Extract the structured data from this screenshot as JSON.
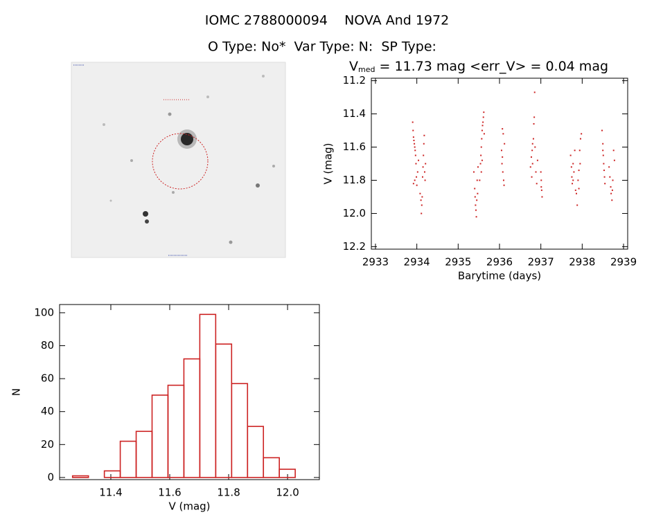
{
  "header": {
    "title": "IOMC 2788000094    NOVA And 1972",
    "subtitle": "O Type: No*  Var Type: N:  SP Type:"
  },
  "chart_data": [
    {
      "type": "scatter",
      "title_main": "V",
      "title_sub": "med",
      "title_rest": " = 11.73 mag <err_V> = 0.04 mag",
      "x_label": "Barytime (days)",
      "y_label": "V (mag)",
      "color": "#cc2222",
      "xlim": [
        2932.9,
        2939.1
      ],
      "ylim": [
        12.215,
        11.185
      ],
      "xticks": [
        2933,
        2934,
        2935,
        2936,
        2937,
        2938,
        2939
      ],
      "yticks": [
        11.2,
        11.4,
        11.6,
        11.8,
        {
          "value": 12,
          "label": "12.0"
        },
        12.2
      ],
      "x": [
        2933.9,
        2933.91,
        2933.92,
        2933.93,
        2933.94,
        2933.95,
        2933.96,
        2933.97,
        2933.98,
        2933.99,
        2934.0,
        2933.92,
        2933.95,
        2934.02,
        2934.04,
        2934.08,
        2934.1,
        2934.11,
        2934.12,
        2934.13,
        2934.14,
        2934.15,
        2934.16,
        2934.17,
        2934.18,
        2934.19,
        2934.2,
        2934.21,
        2935.38,
        2935.4,
        2935.41,
        2935.42,
        2935.43,
        2935.44,
        2935.45,
        2935.46,
        2935.47,
        2935.48,
        2935.52,
        2935.54,
        2935.55,
        2935.56,
        2935.57,
        2935.58,
        2935.59,
        2935.6,
        2935.61,
        2935.62,
        2935.56,
        2935.58,
        2935.63,
        2936.05,
        2936.06,
        2936.07,
        2936.08,
        2936.09,
        2936.1,
        2936.11,
        2936.12,
        2936.07,
        2936.75,
        2936.77,
        2936.78,
        2936.79,
        2936.8,
        2936.82,
        2936.83,
        2936.84,
        2936.85,
        2936.86,
        2936.88,
        2936.9,
        2936.92,
        2936.8,
        2937.0,
        2937.01,
        2937.02,
        2937.03,
        2937.01,
        2937.72,
        2937.74,
        2937.75,
        2937.76,
        2937.78,
        2937.8,
        2937.82,
        2937.84,
        2937.86,
        2937.78,
        2937.88,
        2937.9,
        2937.92,
        2937.94,
        2937.96,
        2937.98,
        2937.92,
        2937.95,
        2938.48,
        2938.5,
        2938.51,
        2938.52,
        2938.53,
        2938.54,
        2938.55,
        2938.5,
        2938.65,
        2938.67,
        2938.69,
        2938.7,
        2938.72,
        2938.74,
        2938.76,
        2938.78,
        2938.73
      ],
      "values": [
        11.45,
        11.5,
        11.54,
        11.56,
        11.58,
        11.6,
        11.62,
        11.65,
        11.7,
        11.78,
        11.83,
        11.82,
        11.8,
        11.75,
        11.68,
        11.88,
        11.92,
        12.0,
        11.95,
        11.9,
        11.78,
        11.72,
        11.65,
        11.58,
        11.53,
        11.75,
        11.8,
        11.7,
        11.75,
        11.85,
        11.9,
        11.95,
        11.98,
        12.02,
        11.92,
        11.8,
        11.88,
        11.72,
        11.8,
        11.7,
        11.65,
        11.6,
        11.55,
        11.5,
        11.47,
        11.45,
        11.42,
        11.39,
        11.75,
        11.68,
        11.52,
        11.62,
        11.7,
        11.66,
        11.75,
        11.52,
        11.8,
        11.83,
        11.58,
        11.49,
        11.72,
        11.66,
        11.78,
        11.62,
        11.7,
        11.55,
        11.46,
        11.42,
        11.27,
        11.6,
        11.75,
        11.82,
        11.68,
        11.58,
        11.75,
        11.8,
        11.86,
        11.9,
        11.84,
        11.65,
        11.72,
        11.78,
        11.82,
        11.7,
        11.75,
        11.62,
        11.86,
        11.88,
        11.8,
        11.95,
        11.8,
        11.74,
        11.62,
        11.55,
        11.52,
        11.85,
        11.7,
        11.5,
        11.58,
        11.65,
        11.7,
        11.74,
        11.78,
        11.82,
        11.62,
        11.72,
        11.78,
        11.84,
        11.88,
        11.92,
        11.8,
        11.62,
        11.68,
        11.86
      ]
    },
    {
      "type": "histogram",
      "x_label": "V (mag)",
      "y_label": "N",
      "color": "#cc2222",
      "xlim": [
        11.226,
        12.108
      ],
      "ylim": [
        -1.3,
        105
      ],
      "xticks": [
        11.4,
        11.6,
        11.8,
        {
          "value": 12,
          "label": "12.0"
        }
      ],
      "yticks": [
        0,
        20,
        40,
        60,
        80,
        100
      ],
      "bins": [
        11.27,
        11.324,
        11.378,
        11.432,
        11.486,
        11.54,
        11.594,
        11.648,
        11.702,
        11.756,
        11.81,
        11.864,
        11.918,
        11.972,
        12.026
      ],
      "values": [
        1,
        0,
        4,
        22,
        28,
        50,
        56,
        72,
        99,
        81,
        57,
        31,
        12,
        5
      ]
    }
  ]
}
